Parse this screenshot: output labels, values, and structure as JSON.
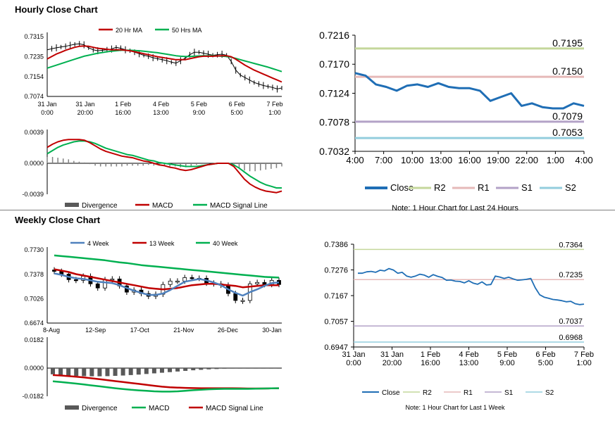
{
  "sections": {
    "hourly_title": "Hourly Close Chart",
    "weekly_title": "Weekly Close Chart"
  },
  "colors": {
    "ma20": "#c00000",
    "ma50": "#00b050",
    "close": "#1f6eb5",
    "r2": "#c4d79b",
    "r1": "#e6b9b8",
    "s1": "#b3a2c7",
    "s2": "#93cddd",
    "w4": "#4f81bd",
    "hist": "#808080"
  },
  "chart_data": [
    {
      "id": "hourly_price",
      "type": "line",
      "legend": [
        "20 Hr MA",
        "50 Hrs MA"
      ],
      "y_ticks": [
        "0.7315",
        "0.7235",
        "0.7154",
        "0.7074"
      ],
      "ylim": [
        0.7074,
        0.7315
      ],
      "x_ticks": [
        [
          "31 Jan",
          "0:00"
        ],
        [
          "31 Jan",
          "20:00"
        ],
        [
          "1 Feb",
          "16:00"
        ],
        [
          "4 Feb",
          "13:00"
        ],
        [
          "5 Feb",
          "9:00"
        ],
        [
          "6 Feb",
          "5:00"
        ],
        [
          "7 Feb",
          "1:00"
        ]
      ],
      "series": [
        {
          "name": "Close",
          "values": [
            0.7262,
            0.7266,
            0.727,
            0.7273,
            0.7276,
            0.728,
            0.7284,
            0.7286,
            0.7282,
            0.727,
            0.7262,
            0.7258,
            0.726,
            0.7262,
            0.7265,
            0.7272,
            0.7268,
            0.7262,
            0.7258,
            0.7252,
            0.7246,
            0.724,
            0.7236,
            0.723,
            0.7226,
            0.7222,
            0.7218,
            0.7212,
            0.7208,
            0.7218,
            0.7228,
            0.7242,
            0.7252,
            0.7252,
            0.7248,
            0.7244,
            0.724,
            0.7242,
            0.7244,
            0.724,
            0.7215,
            0.718,
            0.716,
            0.715,
            0.714,
            0.713,
            0.7124,
            0.7118,
            0.7114,
            0.711,
            0.7104,
            0.7108
          ]
        },
        {
          "name": "20 Hr MA",
          "values": [
            0.7225,
            0.7235,
            0.7245,
            0.7252,
            0.726,
            0.7266,
            0.7272,
            0.7276,
            0.7277,
            0.7276,
            0.7272,
            0.7268,
            0.7266,
            0.7264,
            0.7262,
            0.7262,
            0.7262,
            0.726,
            0.7258,
            0.7254,
            0.725,
            0.7246,
            0.7242,
            0.7238,
            0.7234,
            0.7231,
            0.7228,
            0.7225,
            0.7222,
            0.7222,
            0.7222,
            0.7226,
            0.723,
            0.7234,
            0.7236,
            0.7236,
            0.7236,
            0.7237,
            0.7238,
            0.7238,
            0.7234,
            0.7224,
            0.7212,
            0.72,
            0.719,
            0.718,
            0.7172,
            0.7164,
            0.7156,
            0.7148,
            0.714,
            0.7132
          ]
        },
        {
          "name": "50 Hrs MA",
          "values": [
            0.7188,
            0.7194,
            0.72,
            0.7206,
            0.7212,
            0.7218,
            0.7224,
            0.723,
            0.7236,
            0.724,
            0.7244,
            0.7248,
            0.7251,
            0.7254,
            0.7256,
            0.7258,
            0.726,
            0.726,
            0.726,
            0.7259,
            0.7258,
            0.7256,
            0.7254,
            0.7252,
            0.725,
            0.7247,
            0.7244,
            0.7241,
            0.7238,
            0.7236,
            0.7235,
            0.7235,
            0.7236,
            0.7237,
            0.7238,
            0.7238,
            0.7238,
            0.7237,
            0.7236,
            0.7235,
            0.7232,
            0.7227,
            0.7222,
            0.7217,
            0.7212,
            0.7207,
            0.7202,
            0.7197,
            0.7192,
            0.7186,
            0.718,
            0.7174
          ]
        }
      ]
    },
    {
      "id": "hourly_macd",
      "type": "line",
      "legend": [
        "Divergence",
        "MACD",
        "MACD Signal Line"
      ],
      "y_ticks": [
        "0.0039",
        "0.0000",
        "-0.0039"
      ],
      "ylim": [
        -0.0039,
        0.0039
      ],
      "series": [
        {
          "name": "MACD",
          "values": [
            0.002,
            0.0024,
            0.0027,
            0.0029,
            0.003,
            0.003,
            0.003,
            0.0029,
            0.0026,
            0.0022,
            0.0018,
            0.0015,
            0.0013,
            0.0011,
            0.0009,
            0.0008,
            0.0007,
            0.0005,
            0.0003,
            0.0002,
            0.0,
            -0.0002,
            -0.0003,
            -0.0005,
            -0.0006,
            -0.0008,
            -0.0009,
            -0.0008,
            -0.0006,
            -0.0004,
            -0.0002,
            -0.0001,
            0.0,
            0.0,
            0.0,
            -0.0004,
            -0.0012,
            -0.002,
            -0.0026,
            -0.003,
            -0.0033,
            -0.0035,
            -0.0036,
            -0.0037,
            -0.0035
          ]
        },
        {
          "name": "MACD Signal Line",
          "values": [
            0.0012,
            0.0016,
            0.002,
            0.0023,
            0.0025,
            0.0027,
            0.0028,
            0.0028,
            0.0027,
            0.0025,
            0.0022,
            0.0019,
            0.0017,
            0.0015,
            0.0013,
            0.0011,
            0.001,
            0.0008,
            0.0006,
            0.0004,
            0.0003,
            0.0001,
            0.0,
            -0.0001,
            -0.0002,
            -0.0003,
            -0.0004,
            -0.0004,
            -0.0004,
            -0.0003,
            -0.0002,
            -0.0001,
            0.0,
            0.0,
            0.0,
            -0.0002,
            -0.0006,
            -0.0011,
            -0.0016,
            -0.002,
            -0.0024,
            -0.0027,
            -0.0029,
            -0.0031,
            -0.0031
          ]
        },
        {
          "name": "Divergence",
          "values": [
            0.0008,
            0.0008,
            0.0007,
            0.0006,
            0.0005,
            0.0003,
            0.0002,
            0.0001,
            -0.0001,
            -0.0003,
            -0.0004,
            -0.0004,
            -0.0004,
            -0.0004,
            -0.0004,
            -0.0003,
            -0.0003,
            -0.0003,
            -0.0003,
            -0.0002,
            -0.0003,
            -0.0003,
            -0.0003,
            -0.0004,
            -0.0004,
            -0.0005,
            -0.0005,
            -0.0004,
            -0.0002,
            -0.0001,
            0.0,
            0.0,
            0.0,
            0.0,
            0.0,
            -0.0002,
            -0.0006,
            -0.0009,
            -0.001,
            -0.001,
            -0.0009,
            -0.0008,
            -0.0007,
            -0.0006,
            -0.0004
          ]
        }
      ]
    },
    {
      "id": "hourly_24h",
      "type": "line",
      "y_ticks": [
        "0.7216",
        "0.7170",
        "0.7124",
        "0.7078",
        "0.7032"
      ],
      "ylim": [
        0.7032,
        0.7216
      ],
      "x_ticks": [
        "4:00",
        "7:00",
        "10:00",
        "13:00",
        "16:00",
        "19:00",
        "22:00",
        "1:00",
        "4:00"
      ],
      "levels": [
        {
          "name": "R2",
          "value": 0.7195,
          "label": "0.7195"
        },
        {
          "name": "R1",
          "value": 0.715,
          "label": "0.7150"
        },
        {
          "name": "S1",
          "value": 0.7079,
          "label": "0.7079"
        },
        {
          "name": "S2",
          "value": 0.7053,
          "label": "0.7053"
        }
      ],
      "legend": [
        "Close",
        "R2",
        "R1",
        "S1",
        "S2"
      ],
      "note": "Note: 1 Hour Chart for Last 24 Hours",
      "series": [
        {
          "name": "Close",
          "values": [
            0.7156,
            0.7152,
            0.7138,
            0.7134,
            0.7128,
            0.7136,
            0.7138,
            0.7134,
            0.714,
            0.7134,
            0.7132,
            0.7132,
            0.7128,
            0.7112,
            0.7118,
            0.7124,
            0.7104,
            0.7108,
            0.7102,
            0.71,
            0.71,
            0.7108,
            0.7104
          ]
        }
      ]
    },
    {
      "id": "weekly_price",
      "type": "line",
      "legend": [
        "4 Week",
        "13 Week",
        "40 Week"
      ],
      "y_ticks": [
        "0.7730",
        "0.7378",
        "0.7026",
        "0.6674"
      ],
      "ylim": [
        0.6674,
        0.773
      ],
      "x_ticks": [
        "8-Aug",
        "12-Sep",
        "17-Oct",
        "21-Nov",
        "26-Dec",
        "30-Jan"
      ],
      "series": [
        {
          "name": "Close",
          "values": [
            0.742,
            0.738,
            0.73,
            0.729,
            0.735,
            0.724,
            0.718,
            0.73,
            0.731,
            0.721,
            0.712,
            0.715,
            0.71,
            0.706,
            0.709,
            0.723,
            0.728,
            0.728,
            0.733,
            0.732,
            0.732,
            0.725,
            0.724,
            0.722,
            0.71,
            0.7,
            0.7,
            0.724,
            0.726,
            0.723,
            0.729,
            0.723
          ]
        },
        {
          "name": "4 Week",
          "values": [
            0.739,
            0.737,
            0.734,
            0.732,
            0.731,
            0.729,
            0.727,
            0.726,
            0.725,
            0.722,
            0.718,
            0.714,
            0.711,
            0.708,
            0.708,
            0.71,
            0.715,
            0.721,
            0.727,
            0.729,
            0.731,
            0.729,
            0.726,
            0.722,
            0.716,
            0.711,
            0.707,
            0.712,
            0.716,
            0.721,
            0.725,
            0.726
          ]
        },
        {
          "name": "13 Week",
          "values": [
            0.745,
            0.743,
            0.741,
            0.738,
            0.736,
            0.734,
            0.732,
            0.73,
            0.728,
            0.726,
            0.724,
            0.722,
            0.72,
            0.718,
            0.717,
            0.716,
            0.717,
            0.718,
            0.72,
            0.722,
            0.723,
            0.724,
            0.724,
            0.723,
            0.722,
            0.721,
            0.719,
            0.72,
            0.721,
            0.722,
            0.722,
            0.722
          ]
        },
        {
          "name": "40 Week",
          "values": [
            0.765,
            0.764,
            0.763,
            0.762,
            0.761,
            0.76,
            0.759,
            0.758,
            0.7565,
            0.755,
            0.754,
            0.7525,
            0.751,
            0.75,
            0.749,
            0.748,
            0.747,
            0.746,
            0.745,
            0.744,
            0.743,
            0.742,
            0.741,
            0.74,
            0.739,
            0.738,
            0.737,
            0.736,
            0.735,
            0.734,
            0.7335,
            0.733
          ]
        }
      ]
    },
    {
      "id": "weekly_macd",
      "type": "bar",
      "legend": [
        "Divergence",
        "MACD",
        "MACD Signal Line"
      ],
      "y_ticks": [
        "0.0182",
        "0.0000",
        "-0.0182"
      ],
      "ylim": [
        -0.0182,
        0.0182
      ],
      "series": [
        {
          "name": "Divergence",
          "values": [
            -0.004,
            -0.0045,
            -0.0048,
            -0.005,
            -0.0052,
            -0.0053,
            -0.0053,
            -0.0052,
            -0.005,
            -0.0048,
            -0.0045,
            -0.0042,
            -0.0038,
            -0.0034,
            -0.003,
            -0.0026,
            -0.0022,
            -0.0018,
            -0.0014,
            -0.0011,
            -0.0008,
            -0.0006,
            -0.0004,
            -0.0003,
            -0.0002,
            -0.0001,
            -0.0001,
            0.0,
            0.0,
            0.0
          ]
        },
        {
          "name": "MACD",
          "values": [
            -0.0085,
            -0.009,
            -0.0095,
            -0.01,
            -0.0106,
            -0.0112,
            -0.0118,
            -0.0124,
            -0.013,
            -0.0135,
            -0.014,
            -0.0144,
            -0.0147,
            -0.015,
            -0.0152,
            -0.0152,
            -0.015,
            -0.0147,
            -0.0143,
            -0.014,
            -0.0137,
            -0.0135,
            -0.0134,
            -0.0134,
            -0.0134,
            -0.0134,
            -0.0133,
            -0.0132,
            -0.0131,
            -0.013
          ]
        },
        {
          "name": "MACD Signal Line",
          "values": [
            -0.0045,
            -0.0048,
            -0.0052,
            -0.0056,
            -0.006,
            -0.0066,
            -0.0072,
            -0.0078,
            -0.0084,
            -0.009,
            -0.0096,
            -0.0102,
            -0.0108,
            -0.0114,
            -0.012,
            -0.0124,
            -0.0126,
            -0.0128,
            -0.0129,
            -0.013,
            -0.013,
            -0.013,
            -0.013,
            -0.013,
            -0.0131,
            -0.0132,
            -0.0132,
            -0.0132,
            -0.0131,
            -0.013
          ]
        }
      ]
    },
    {
      "id": "weekly_hourly",
      "type": "line",
      "y_ticks": [
        "0.7386",
        "0.7276",
        "0.7167",
        "0.7057",
        "0.6947"
      ],
      "ylim": [
        0.6947,
        0.7386
      ],
      "x_ticks": [
        [
          "31 Jan",
          "0:00"
        ],
        [
          "31 Jan",
          "20:00"
        ],
        [
          "1 Feb",
          "16:00"
        ],
        [
          "4 Feb",
          "13:00"
        ],
        [
          "5 Feb",
          "9:00"
        ],
        [
          "6 Feb",
          "5:00"
        ],
        [
          "7 Feb",
          "1:00"
        ]
      ],
      "levels": [
        {
          "name": "R2",
          "value": 0.7364,
          "label": "0.7364"
        },
        {
          "name": "R1",
          "value": 0.7235,
          "label": "0.7235"
        },
        {
          "name": "S1",
          "value": 0.7037,
          "label": "0.7037"
        },
        {
          "name": "S2",
          "value": 0.6968,
          "label": "0.6968"
        }
      ],
      "legend": [
        "Close",
        "R2",
        "R1",
        "S1",
        "S2"
      ],
      "note": "Note: 1 Hour Chart for Last 1 Week",
      "series": [
        {
          "name": "Close",
          "values": [
            0.7262,
            0.7262,
            0.7268,
            0.727,
            0.7266,
            0.7275,
            0.7272,
            0.7282,
            0.7276,
            0.7262,
            0.7266,
            0.725,
            0.7245,
            0.725,
            0.7258,
            0.7254,
            0.7245,
            0.7256,
            0.7249,
            0.7244,
            0.7232,
            0.7233,
            0.7228,
            0.7227,
            0.7221,
            0.723,
            0.722,
            0.7215,
            0.7225,
            0.7212,
            0.7214,
            0.725,
            0.7246,
            0.724,
            0.7245,
            0.7238,
            0.7232,
            0.7234,
            0.7236,
            0.724,
            0.72,
            0.717,
            0.716,
            0.7155,
            0.715,
            0.7148,
            0.7145,
            0.714,
            0.7142,
            0.7132,
            0.7128,
            0.713
          ]
        }
      ]
    }
  ]
}
